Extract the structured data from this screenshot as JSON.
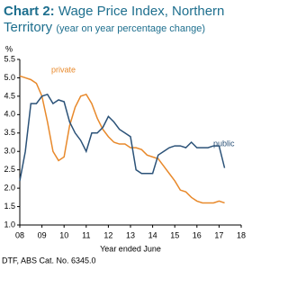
{
  "chart_data": {
    "type": "line",
    "label": "Chart 2:",
    "title": "Wage Price Index, Northern Territory",
    "subtitle": "(year on year percentage change)",
    "y_label": "%",
    "x_label": "Year ended June",
    "source": "DTF, ABS  Cat. No. 6345.0",
    "x": [
      8.0,
      8.25,
      8.5,
      8.75,
      9.0,
      9.25,
      9.5,
      9.75,
      10.0,
      10.25,
      10.5,
      10.75,
      11.0,
      11.25,
      11.5,
      11.75,
      12.0,
      12.25,
      12.5,
      12.75,
      13.0,
      13.25,
      13.5,
      13.75,
      14.0,
      14.25,
      14.5,
      14.75,
      15.0,
      15.25,
      15.5,
      15.75,
      16.0,
      16.25,
      16.5,
      16.75,
      17.0,
      17.25
    ],
    "series": [
      {
        "name": "private",
        "color": "#e8892b",
        "values": [
          5.05,
          5.0,
          4.95,
          4.85,
          4.5,
          3.8,
          3.0,
          2.75,
          2.85,
          3.7,
          4.2,
          4.5,
          4.55,
          4.3,
          3.9,
          3.6,
          3.4,
          3.25,
          3.2,
          3.2,
          3.1,
          3.1,
          3.05,
          2.9,
          2.85,
          2.8,
          2.6,
          2.4,
          2.2,
          1.95,
          1.9,
          1.75,
          1.65,
          1.6,
          1.6,
          1.6,
          1.65,
          1.6
        ]
      },
      {
        "name": "public",
        "color": "#2b5278",
        "values": [
          2.2,
          3.0,
          4.3,
          4.3,
          4.5,
          4.55,
          4.3,
          4.4,
          4.35,
          3.8,
          3.5,
          3.3,
          3.0,
          3.5,
          3.5,
          3.65,
          3.95,
          3.8,
          3.6,
          3.5,
          3.4,
          2.5,
          2.4,
          2.4,
          2.4,
          2.9,
          3.0,
          3.1,
          3.15,
          3.15,
          3.1,
          3.25,
          3.1,
          3.1,
          3.1,
          3.15,
          3.15,
          2.55
        ]
      }
    ],
    "xlim": [
      8,
      18
    ],
    "xticks": [
      {
        "value": 8,
        "label": "08"
      },
      {
        "value": 9,
        "label": "09"
      },
      10,
      11,
      12,
      13,
      14,
      15,
      16,
      17,
      18
    ],
    "ylim": [
      1.0,
      5.5
    ],
    "yticks": [
      {
        "value": 1.0,
        "label": "1.0"
      },
      {
        "value": 1.5,
        "label": "1.5"
      },
      {
        "value": 2.0,
        "label": "2.0"
      },
      {
        "value": 2.5,
        "label": "2.5"
      },
      {
        "value": 3.0,
        "label": "3.0"
      },
      {
        "value": 3.5,
        "label": "3.5"
      },
      {
        "value": 4.0,
        "label": "4.0"
      },
      {
        "value": 4.5,
        "label": "4.5"
      },
      {
        "value": 5.0,
        "label": "5.0"
      },
      {
        "value": 5.5,
        "label": "5.5"
      }
    ],
    "grid": false
  }
}
